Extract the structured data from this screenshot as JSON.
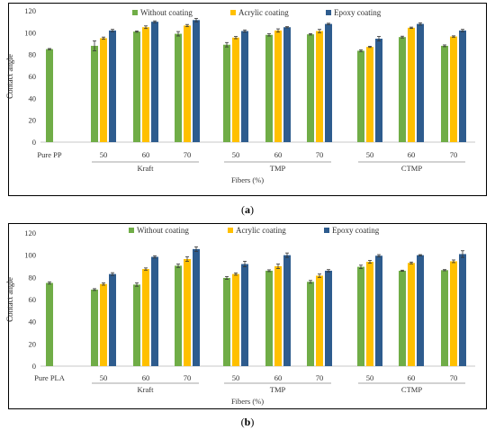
{
  "chart_data": [
    {
      "type": "bar",
      "panel_label": "a",
      "title": "",
      "ylabel": "Contact angle",
      "xlabel": "Fibers (%)",
      "ylim": [
        0,
        120
      ],
      "yticks": [
        0,
        20,
        40,
        60,
        80,
        100,
        120
      ],
      "grid": false,
      "legend_position": "top",
      "reference": {
        "label": "Pure PP",
        "value": 85,
        "error": 0.5
      },
      "groups": [
        "Kraft",
        "TMP",
        "CTMP"
      ],
      "categories": [
        "50",
        "60",
        "70",
        "50",
        "60",
        "70",
        "50",
        "60",
        "70"
      ],
      "series": [
        {
          "name": "Without coating",
          "color": "#70AD47",
          "values": [
            88,
            101,
            99,
            89,
            98,
            98.5,
            83.5,
            96,
            88
          ],
          "errors": [
            4.5,
            0.6,
            2,
            2,
            1,
            0.6,
            0.8,
            0.8,
            0.8
          ]
        },
        {
          "name": "Acrylic coating",
          "color": "#FFC000",
          "values": [
            95,
            105,
            106.5,
            95.5,
            102,
            101.5,
            87,
            104.5,
            96.5
          ],
          "errors": [
            1,
            1.2,
            1,
            1,
            1.5,
            1.5,
            0.5,
            0.6,
            0.6
          ]
        },
        {
          "name": "Epoxy coating",
          "color": "#2E5C8E",
          "values": [
            102,
            110,
            111.5,
            101.5,
            105,
            108,
            94.5,
            108,
            102
          ],
          "errors": [
            1,
            0.8,
            1.5,
            1,
            0.5,
            0.6,
            2,
            1,
            1
          ]
        }
      ]
    },
    {
      "type": "bar",
      "panel_label": "b",
      "title": "",
      "ylabel": "Contact angle",
      "xlabel": "Fibers (%)",
      "ylim": [
        0,
        120
      ],
      "yticks": [
        0,
        20,
        40,
        60,
        80,
        100,
        120
      ],
      "grid": false,
      "legend_position": "top",
      "reference": {
        "label": "Pure PLA",
        "value": 75,
        "error": 1
      },
      "groups": [
        "Kraft",
        "TMP",
        "CTMP"
      ],
      "categories": [
        "50",
        "60",
        "70",
        "50",
        "60",
        "70",
        "50",
        "60",
        "70"
      ],
      "series": [
        {
          "name": "Without coating",
          "color": "#70AD47",
          "values": [
            69,
            73.5,
            90.5,
            79.5,
            86,
            76,
            89.5,
            86,
            86.5
          ],
          "errors": [
            0.8,
            1.5,
            1.5,
            1.2,
            0.8,
            1.2,
            1.5,
            0.5,
            0.5
          ]
        },
        {
          "name": "Acrylic coating",
          "color": "#FFC000",
          "values": [
            74,
            87.5,
            96.5,
            83,
            90,
            81.5,
            94,
            93,
            94.5
          ],
          "errors": [
            1,
            1,
            2,
            1,
            2,
            1.5,
            1.2,
            0.8,
            1.2
          ]
        },
        {
          "name": "Epoxy coating",
          "color": "#2E5C8E",
          "values": [
            83,
            98.5,
            105.5,
            92,
            100,
            86,
            99.5,
            100,
            101
          ],
          "errors": [
            1.2,
            1,
            2,
            2.5,
            2,
            1,
            1,
            0.5,
            3
          ]
        }
      ]
    }
  ],
  "captions": [
    {
      "open": "(",
      "letter": "a",
      "close": ")"
    },
    {
      "open": "(",
      "letter": "b",
      "close": ")"
    }
  ]
}
